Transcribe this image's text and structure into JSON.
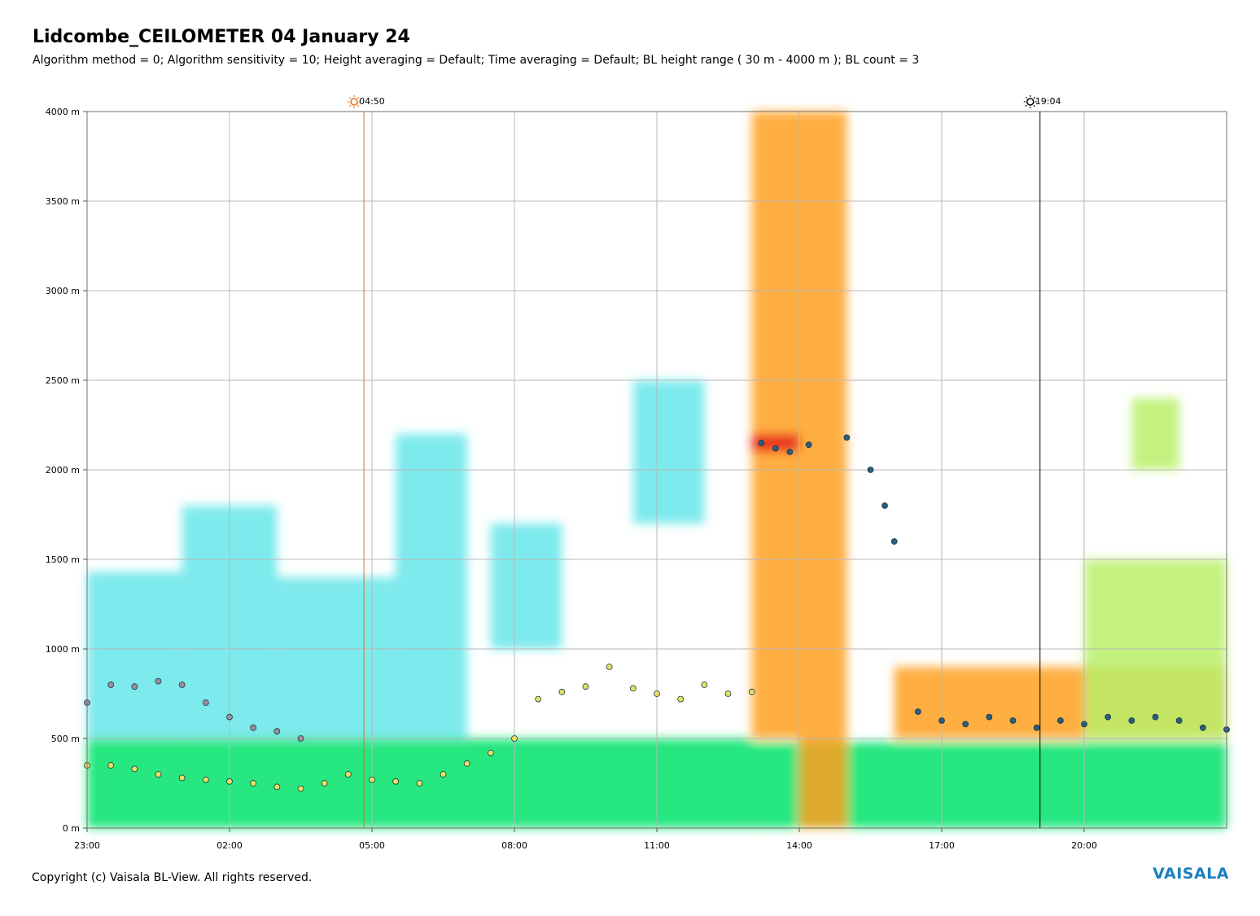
{
  "header": {
    "title": "Lidcombe_CEILOMETER 04 January 24",
    "subtitle": "Algorithm method = 0; Algorithm sensitivity = 10; Height averaging = Default; Time averaging = Default; BL height range ( 30 m - 4000 m ); BL count = 3"
  },
  "footer": {
    "copyright": "Copyright (c) Vaisala BL-View. All rights reserved.",
    "brand": "VAISALA"
  },
  "colors": {
    "clear_air": "#00e36a",
    "light_aerosol": "#b8f06a",
    "dense_aerosol": "#ffa020",
    "cloud": "#e81c1c",
    "faint_aerosol": "#66e6ea",
    "bl_point": "#2a5d7e",
    "grid": "#b8b8b8"
  },
  "chart_data": {
    "type": "heatmap",
    "x_axis": {
      "unit": "hours since 23:00 previous day",
      "range": [
        0,
        24
      ],
      "ticks": [
        "23:00",
        "02:00",
        "05:00",
        "08:00",
        "11:00",
        "14:00",
        "17:00",
        "20:00"
      ]
    },
    "y_axis": {
      "unit": "m",
      "range": [
        0,
        4000
      ],
      "ticks": [
        "0 m",
        "500 m",
        "1000 m",
        "1500 m",
        "2000 m",
        "2500 m",
        "3000 m",
        "3500 m",
        "4000 m"
      ]
    },
    "grid": true,
    "markers": [
      {
        "name": "sunrise",
        "label": "04:50",
        "hour": 5.83,
        "color": "#e07020"
      },
      {
        "name": "sunset",
        "label": "19:04",
        "hour": 20.07,
        "color": "#000000"
      }
    ],
    "backscatter_regions": [
      {
        "x": [
          0,
          14.0
        ],
        "y": [
          0,
          500
        ],
        "level": "clear_air"
      },
      {
        "x": [
          14.0,
          24
        ],
        "y": [
          0,
          480
        ],
        "level": "clear_air"
      },
      {
        "x": [
          0,
          2.0
        ],
        "y": [
          500,
          1430
        ],
        "level": "faint_aerosol"
      },
      {
        "x": [
          2.0,
          4.0
        ],
        "y": [
          500,
          1800
        ],
        "level": "faint_aerosol"
      },
      {
        "x": [
          4.0,
          6.5
        ],
        "y": [
          500,
          1400
        ],
        "level": "faint_aerosol"
      },
      {
        "x": [
          6.5,
          8.0
        ],
        "y": [
          500,
          2200
        ],
        "level": "faint_aerosol"
      },
      {
        "x": [
          8.5,
          10.0
        ],
        "y": [
          1000,
          1700
        ],
        "level": "faint_aerosol"
      },
      {
        "x": [
          11.5,
          13.0
        ],
        "y": [
          1700,
          2500
        ],
        "level": "faint_aerosol"
      },
      {
        "x": [
          14.0,
          15.0
        ],
        "y": [
          500,
          4000
        ],
        "level": "dense_aerosol"
      },
      {
        "x": [
          15.0,
          16.0
        ],
        "y": [
          0,
          4000
        ],
        "level": "dense_aerosol"
      },
      {
        "x": [
          14.0,
          15.0
        ],
        "y": [
          2100,
          2200
        ],
        "level": "cloud"
      },
      {
        "x": [
          17.0,
          24
        ],
        "y": [
          500,
          900
        ],
        "level": "dense_aerosol"
      },
      {
        "x": [
          21.0,
          24
        ],
        "y": [
          500,
          1500
        ],
        "level": "light_aerosol"
      },
      {
        "x": [
          22.0,
          23.0
        ],
        "y": [
          2000,
          2400
        ],
        "level": "light_aerosol"
      }
    ],
    "series": [
      {
        "name": "",
        "points": [
          [
            0,
            700
          ],
          [
            0.5,
            800
          ],
          [
            1.0,
            790
          ],
          [
            1.5,
            820
          ],
          [
            2.0,
            800
          ],
          [
            2.5,
            700
          ],
          [
            3.0,
            620
          ],
          [
            3.5,
            560
          ],
          [
            4.0,
            540
          ],
          [
            4.5,
            500
          ]
        ]
      },
      {
        "name": "",
        "points": [
          [
            0,
            350
          ],
          [
            0.5,
            350
          ],
          [
            1.0,
            330
          ],
          [
            1.5,
            300
          ],
          [
            2.0,
            280
          ],
          [
            2.5,
            270
          ],
          [
            3.0,
            260
          ],
          [
            3.5,
            250
          ],
          [
            4.0,
            230
          ],
          [
            4.5,
            220
          ],
          [
            5.0,
            250
          ],
          [
            5.5,
            300
          ],
          [
            6.0,
            270
          ],
          [
            6.5,
            260
          ],
          [
            7.0,
            250
          ],
          [
            7.5,
            300
          ],
          [
            8.0,
            360
          ],
          [
            8.5,
            420
          ],
          [
            9.0,
            500
          ],
          [
            9.5,
            720
          ],
          [
            10.0,
            760
          ],
          [
            10.5,
            790
          ],
          [
            11.0,
            900
          ],
          [
            11.5,
            780
          ],
          [
            12.0,
            750
          ],
          [
            12.5,
            720
          ],
          [
            13.0,
            800
          ],
          [
            13.5,
            750
          ],
          [
            14.0,
            760
          ]
        ]
      },
      {
        "name": "",
        "points": [
          [
            14.2,
            2150
          ],
          [
            14.5,
            2120
          ],
          [
            14.8,
            2100
          ],
          [
            15.2,
            2140
          ],
          [
            16.0,
            2180
          ],
          [
            16.5,
            2000
          ],
          [
            16.8,
            1800
          ],
          [
            17.0,
            1600
          ],
          [
            17.5,
            650
          ],
          [
            18.0,
            600
          ],
          [
            18.5,
            580
          ],
          [
            19.0,
            620
          ],
          [
            19.5,
            600
          ],
          [
            20.0,
            560
          ],
          [
            20.5,
            600
          ],
          [
            21.0,
            580
          ],
          [
            21.5,
            620
          ],
          [
            22.0,
            600
          ],
          [
            22.5,
            620
          ],
          [
            23.0,
            600
          ],
          [
            23.5,
            560
          ],
          [
            24.0,
            550
          ]
        ]
      }
    ]
  }
}
